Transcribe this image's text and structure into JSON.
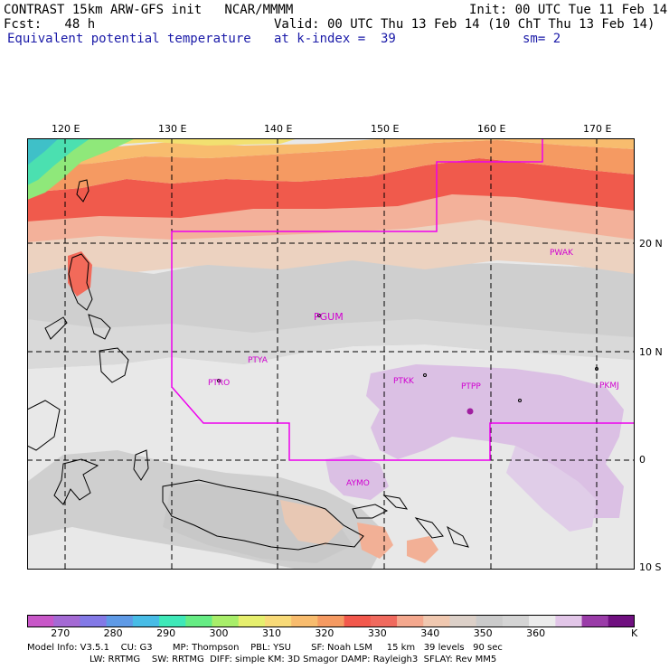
{
  "header": {
    "title": "CONTRAST 15km ARW-GFS init   NCAR/MMMM",
    "init": "Init: 00 UTC Tue 11 Feb 14",
    "fcst": "Fcst:   48 h",
    "valid": "Valid: 00 UTC Thu 13 Feb 14 (10 ChT Thu 13 Feb 14)",
    "field": "Equivalent potential temperature",
    "level": "at k-index =  39",
    "smoothing": "sm= 2"
  },
  "map": {
    "longitudes": [
      "120 E",
      "130 E",
      "140 E",
      "150 E",
      "160 E",
      "170 E"
    ],
    "latitudes": [
      "20 N",
      "10 N",
      "0",
      "10 S"
    ],
    "stations": [
      "PWAK",
      "PGUM",
      "PTYA",
      "PTRO",
      "PTKK",
      "PTPP",
      "PKMJ",
      "AYMO"
    ]
  },
  "colorbar": {
    "colors": [
      "#c857c8",
      "#a46ad4",
      "#8379e6",
      "#5f9ae6",
      "#48bce6",
      "#3fe8b8",
      "#66ec84",
      "#a8ee6a",
      "#e6ef6e",
      "#f8da78",
      "#f8bc6e",
      "#f59a62",
      "#f2584c",
      "#f06a5e",
      "#f4a88e",
      "#f0c8b0",
      "#dcd0c8",
      "#cbcbcb",
      "#d4d4d4",
      "#ececec",
      "#e2c6e8",
      "#9a3ca8",
      "#701080"
    ],
    "ticks": [
      "270",
      "280",
      "290",
      "300",
      "310",
      "320",
      "330",
      "340",
      "350",
      "360"
    ],
    "unit": "K"
  },
  "model_info": {
    "line1": "Model Info: V3.5.1    CU: G3       MP: Thompson    PBL: YSU       SF: Noah LSM     15 km   39 levels   90 sec",
    "line2": "LW: RRTMG    SW: RRTMG  DIFF: simple KM: 3D Smagor DAMP: Rayleigh3  SFLAY: Rev MM5"
  }
}
